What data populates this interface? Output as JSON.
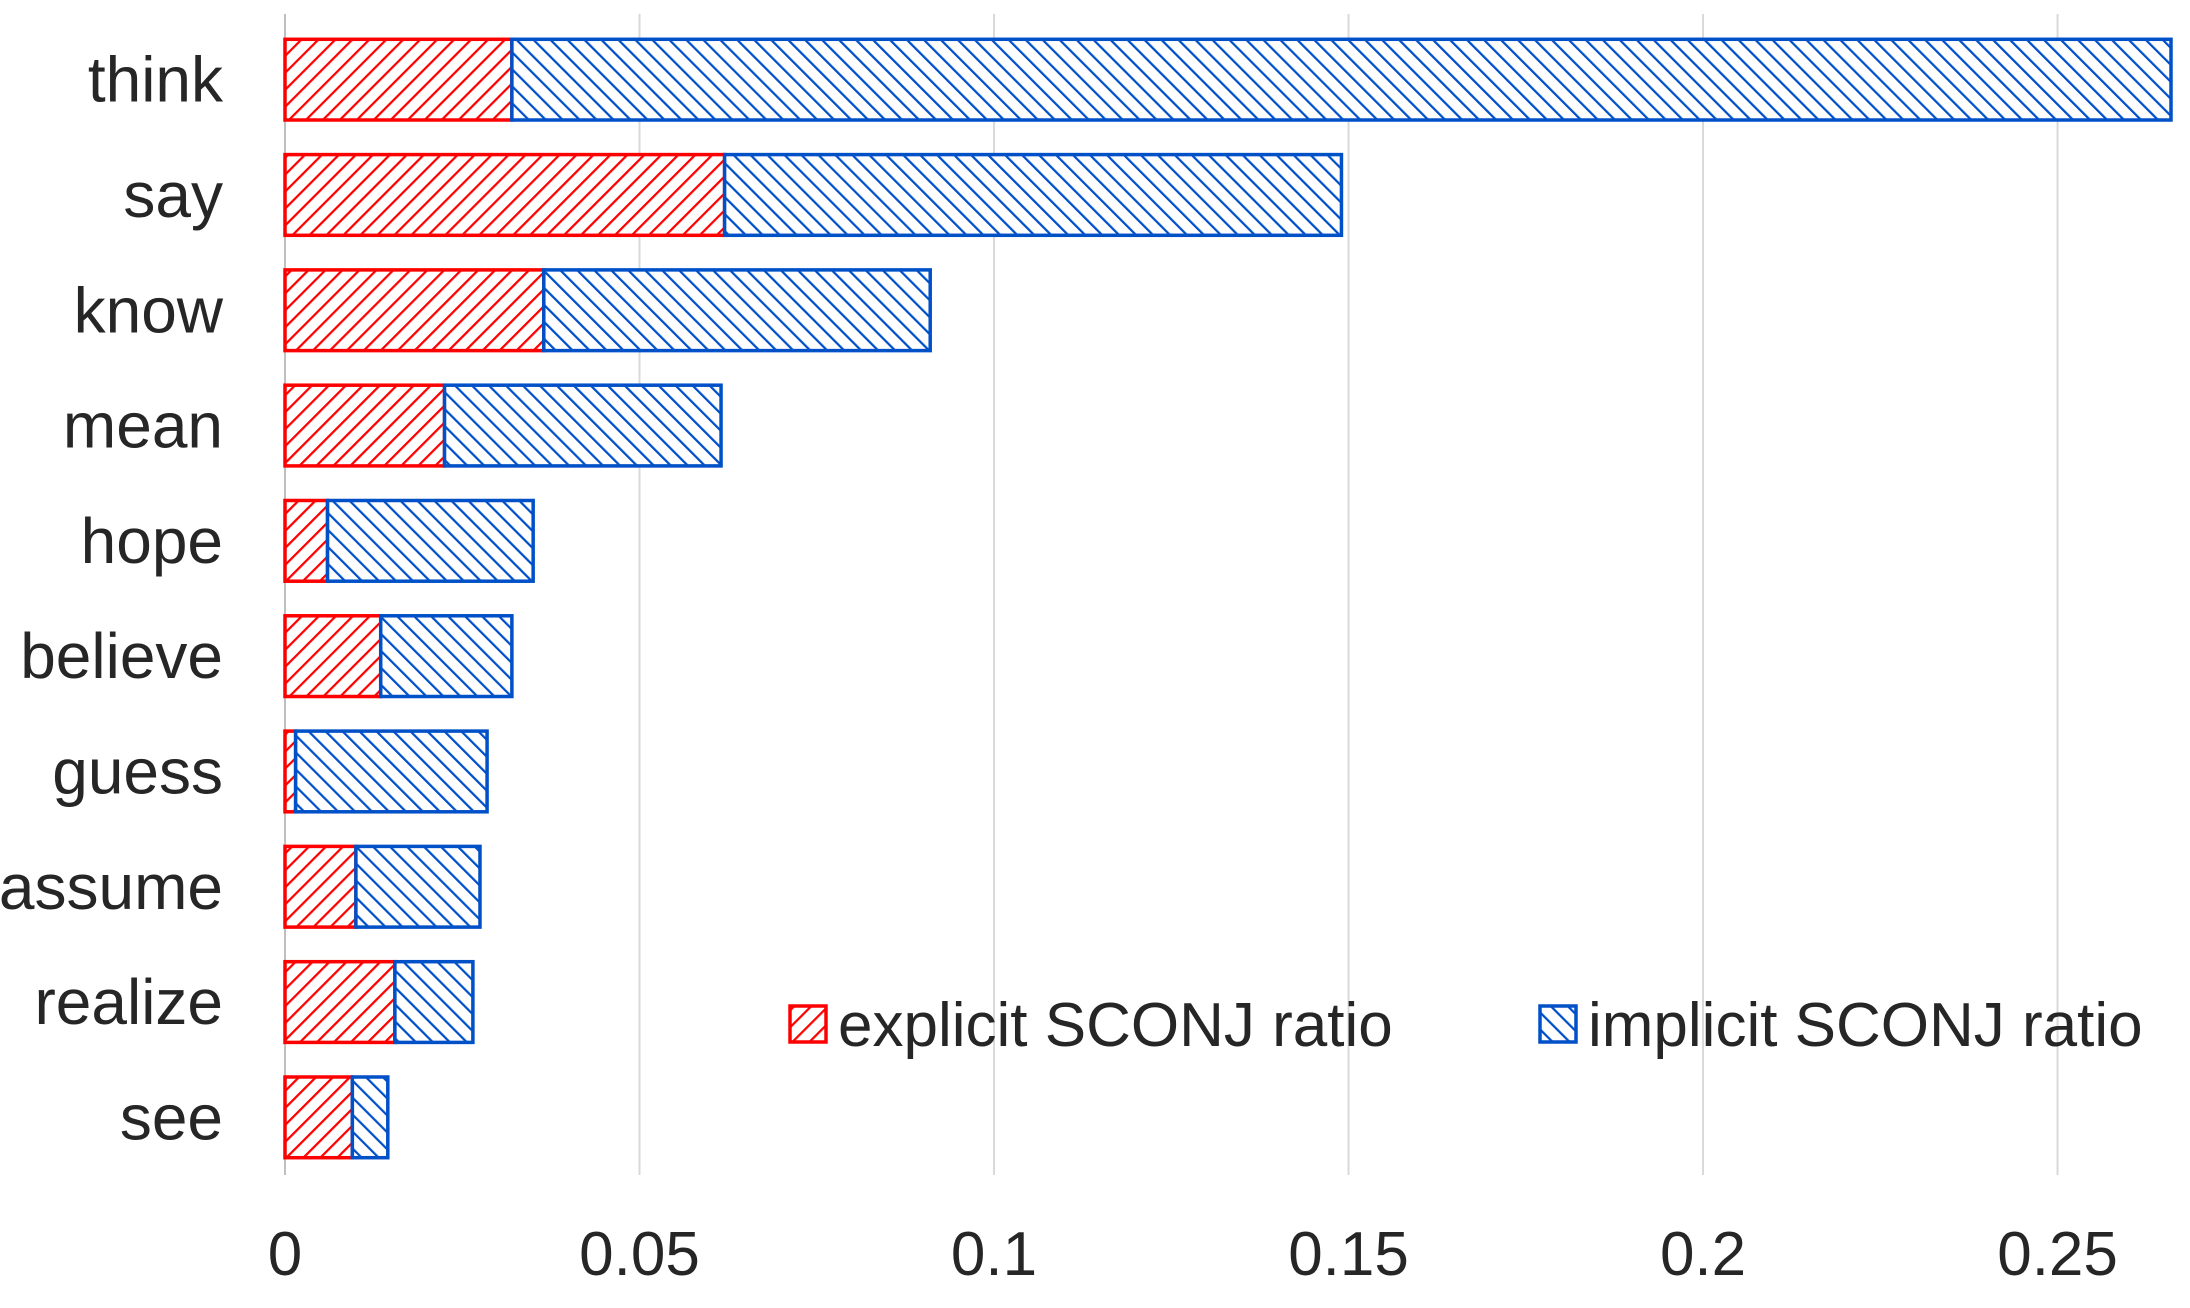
{
  "chart_data": {
    "type": "bar",
    "orientation": "horizontal",
    "stacked": true,
    "categories": [
      "think",
      "say",
      "know",
      "mean",
      "hope",
      "believe",
      "guess",
      "assume",
      "realize",
      "see"
    ],
    "series": [
      {
        "name": "explicit SCONJ ratio",
        "color": "#ff0000",
        "pattern": "backslash-hatch",
        "values": [
          0.032,
          0.062,
          0.0365,
          0.0225,
          0.006,
          0.0135,
          0.0015,
          0.01,
          0.0155,
          0.0095
        ]
      },
      {
        "name": "implicit SCONJ ratio",
        "color": "#0050c8",
        "pattern": "slash-hatch",
        "values": [
          0.234,
          0.087,
          0.0545,
          0.039,
          0.029,
          0.0185,
          0.027,
          0.0175,
          0.011,
          0.005
        ]
      }
    ],
    "xlim": [
      0,
      0.266
    ],
    "xticks": [
      0,
      0.05,
      0.1,
      0.15,
      0.2,
      0.25
    ],
    "xtick_labels": [
      "0",
      "0.05",
      "0.1",
      "0.15",
      "0.2",
      "0.25"
    ],
    "grid": "vertical",
    "legend_position": "bottom-right",
    "title": "",
    "xlabel": "",
    "ylabel": ""
  }
}
